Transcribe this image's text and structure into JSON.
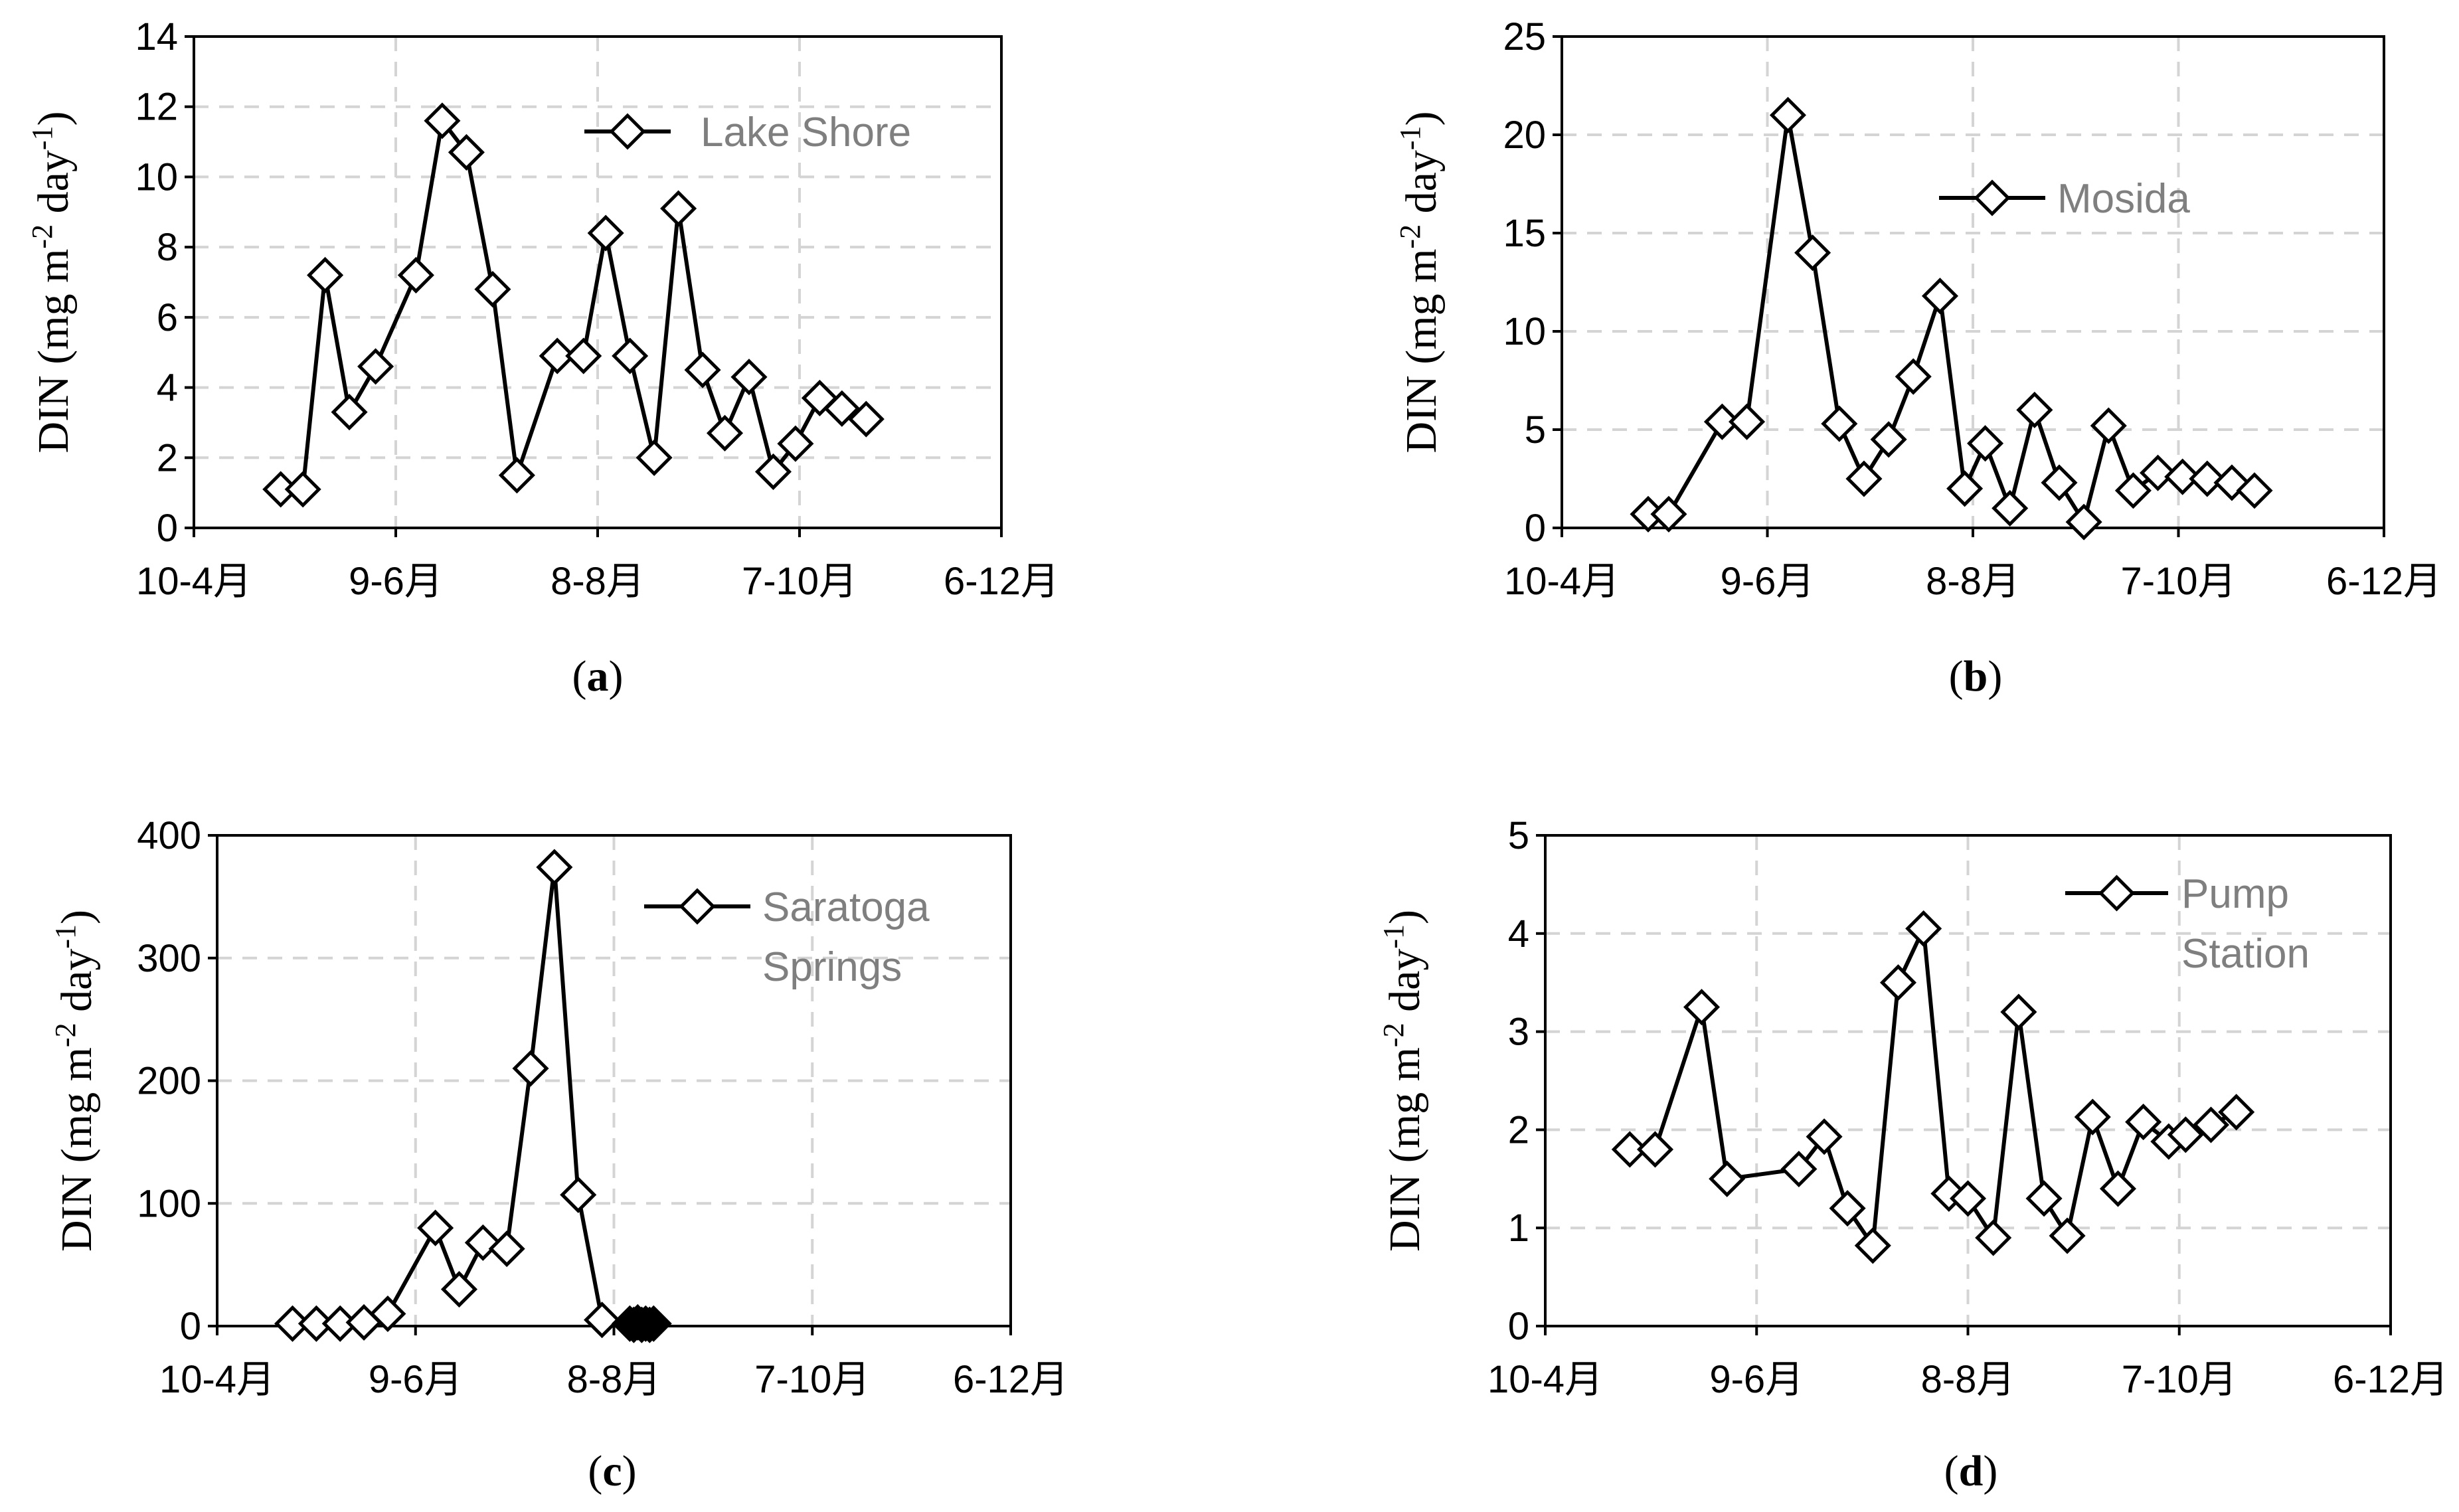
{
  "colors": {
    "line": "#000000",
    "grid": "#d4d4d4",
    "legend_text": "#7f7f7f",
    "background": "#ffffff"
  },
  "chart_data": [
    {
      "type": "line",
      "panel": "a",
      "caption": {
        "open": "(",
        "letter": "a",
        "close": ")"
      },
      "legend": [
        "Lake Shore"
      ],
      "legend_placement": "top-right",
      "ylabel": {
        "main": "DIN (mg m",
        "sup1": "-2",
        "mid": " day",
        "sup2": "-1",
        "end": ")"
      },
      "ylim": [
        0,
        14
      ],
      "yticks": [
        0,
        2,
        4,
        6,
        8,
        10,
        12,
        14
      ],
      "xlim": [
        0,
        4
      ],
      "xticks": [
        0,
        1,
        2,
        3,
        4
      ],
      "xtick_labels": [
        "10-4月",
        "9-6月",
        "8-8月",
        "7-10月",
        "6-12月"
      ],
      "grid": true,
      "series": [
        {
          "name": "Lake Shore",
          "marker": "diamond-open",
          "x": [
            0.43,
            0.54,
            0.65,
            0.77,
            0.9,
            1.1,
            1.23,
            1.35,
            1.48,
            1.6,
            1.8,
            1.93,
            2.04,
            2.16,
            2.28,
            2.4,
            2.52,
            2.63,
            2.75,
            2.87,
            2.98,
            3.1,
            3.21,
            3.33
          ],
          "values": [
            1.1,
            1.1,
            7.2,
            3.3,
            4.6,
            7.2,
            11.6,
            10.7,
            6.8,
            1.5,
            4.9,
            4.9,
            8.4,
            4.9,
            2.0,
            9.1,
            4.5,
            2.7,
            4.3,
            1.6,
            2.4,
            3.7,
            3.4,
            3.1
          ]
        }
      ]
    },
    {
      "type": "line",
      "panel": "b",
      "caption": {
        "open": "(",
        "letter": "b",
        "close": ")"
      },
      "legend": [
        "Mosida"
      ],
      "legend_placement": "top-right",
      "ylabel": {
        "main": "DIN (mg m",
        "sup1": "-2",
        "mid": " day",
        "sup2": "-1",
        "end": ")"
      },
      "ylim": [
        0,
        25
      ],
      "yticks": [
        0,
        5,
        10,
        15,
        20,
        25
      ],
      "xlim": [
        0,
        4
      ],
      "xticks": [
        0,
        1,
        2,
        3,
        4
      ],
      "xtick_labels": [
        "10-4月",
        "9-6月",
        "8-8月",
        "7-10月",
        "6-12月"
      ],
      "grid": true,
      "series": [
        {
          "name": "Mosida",
          "marker": "diamond-open",
          "x": [
            0.42,
            0.52,
            0.78,
            0.9,
            1.1,
            1.22,
            1.35,
            1.47,
            1.59,
            1.71,
            1.84,
            1.96,
            2.06,
            2.18,
            2.3,
            2.42,
            2.54,
            2.66,
            2.78,
            2.9,
            3.02,
            3.14,
            3.26,
            3.37
          ],
          "values": [
            0.7,
            0.7,
            5.4,
            5.4,
            21.0,
            14.0,
            5.3,
            2.5,
            4.5,
            7.7,
            11.8,
            2.0,
            4.3,
            1.0,
            6.0,
            2.3,
            0.3,
            5.2,
            1.9,
            2.8,
            2.6,
            2.5,
            2.3,
            1.9
          ]
        }
      ]
    },
    {
      "type": "line",
      "panel": "c",
      "caption": {
        "open": "(",
        "letter": "c",
        "close": ")"
      },
      "legend": [
        "Saratoga",
        "Springs"
      ],
      "legend_placement": "top-right",
      "ylabel": {
        "main": "DIN (mg m",
        "sup1": "-2",
        "mid": " day",
        "sup2": "-1",
        "end": ")"
      },
      "ylim": [
        0,
        400
      ],
      "yticks": [
        0,
        100,
        200,
        300,
        400
      ],
      "xlim": [
        0,
        4
      ],
      "xticks": [
        0,
        1,
        2,
        3,
        4
      ],
      "xtick_labels": [
        "10-4月",
        "9-6月",
        "8-8月",
        "7-10月",
        "6-12月"
      ],
      "grid": true,
      "series": [
        {
          "name": "Saratoga Springs",
          "marker": "diamond-open",
          "x": [
            0.38,
            0.5,
            0.62,
            0.74,
            0.86,
            1.1,
            1.22,
            1.34,
            1.46,
            1.58,
            1.7,
            1.82,
            1.94
          ],
          "values": [
            2,
            2,
            2,
            3,
            10,
            80,
            30,
            68,
            63,
            210,
            374,
            107,
            5
          ]
        },
        {
          "name": "Saratoga Springs (cluster)",
          "marker": "diamond-filled",
          "x": [
            2.08,
            2.1,
            2.12,
            2.14,
            2.16,
            2.18,
            2.2
          ],
          "values": [
            2,
            1,
            3,
            1,
            2,
            1,
            2
          ]
        }
      ]
    },
    {
      "type": "line",
      "panel": "d",
      "caption": {
        "open": "(",
        "letter": "d",
        "close": ")"
      },
      "legend": [
        "Pump",
        "Station"
      ],
      "legend_placement": "top-right",
      "ylabel": {
        "main": "DIN (mg m",
        "sup1": "-2",
        "mid": " day",
        "sup2": "-1",
        "end": ")"
      },
      "ylim": [
        0,
        5
      ],
      "yticks": [
        0,
        1,
        2,
        3,
        4,
        5
      ],
      "xlim": [
        0,
        4
      ],
      "xticks": [
        0,
        1,
        2,
        3,
        4
      ],
      "xtick_labels": [
        "10-4月",
        "9-6月",
        "8-8月",
        "7-10月",
        "6-12月"
      ],
      "grid": true,
      "series": [
        {
          "name": "Pump Station",
          "marker": "diamond-open",
          "x": [
            0.4,
            0.52,
            0.74,
            0.86,
            1.2,
            1.32,
            1.43,
            1.55,
            1.67,
            1.79,
            1.91,
            2.0,
            2.12,
            2.24,
            2.36,
            2.47,
            2.59,
            2.71,
            2.83,
            2.95,
            3.03,
            3.15,
            3.27
          ],
          "values": [
            1.8,
            1.8,
            3.25,
            1.5,
            1.6,
            1.93,
            1.2,
            0.82,
            3.5,
            4.05,
            1.35,
            1.3,
            0.9,
            3.2,
            1.3,
            0.92,
            2.13,
            1.4,
            2.08,
            1.88,
            1.95,
            2.05,
            2.18
          ]
        }
      ]
    }
  ]
}
